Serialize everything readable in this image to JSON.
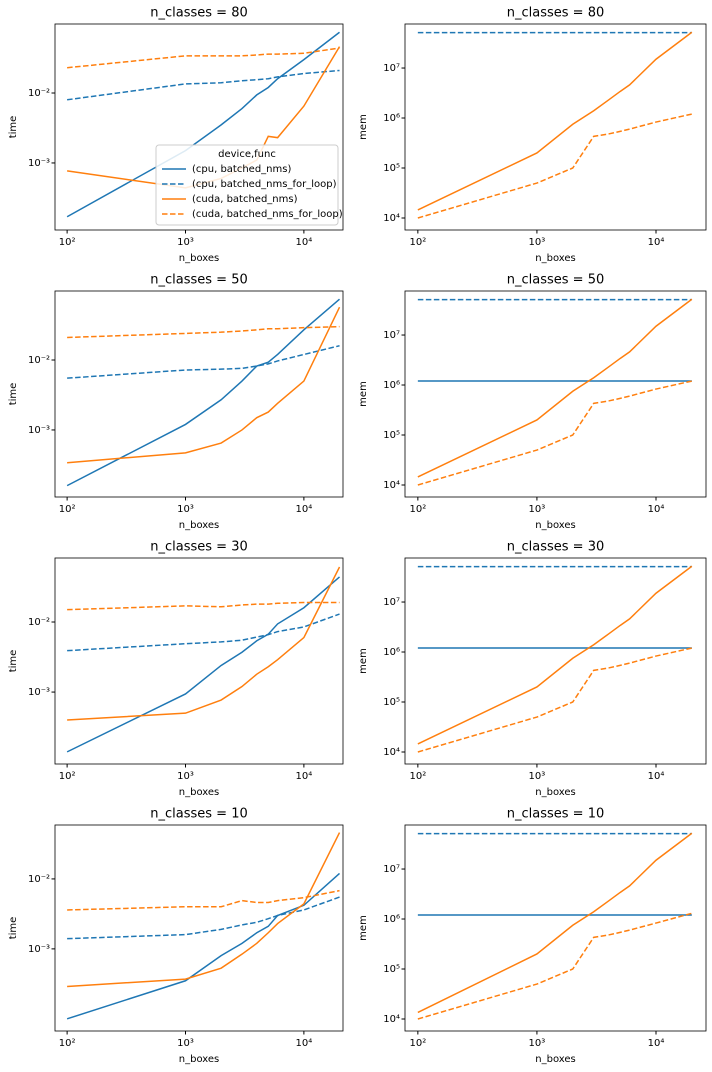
{
  "chart_data": [
    {
      "type": "line",
      "title": "n_classes = 80",
      "xlabel": "n_boxes",
      "ylabel": "time",
      "xscale": "log",
      "yscale": "log",
      "xlim": [
        79,
        21400
      ],
      "ylim": [
        0.00011,
        0.097
      ],
      "xticks": [
        {
          "value": 100,
          "label": "10²"
        },
        {
          "value": 1000,
          "label": "10³"
        },
        {
          "value": 10000,
          "label": "10⁴"
        }
      ],
      "yticks": [
        {
          "value": 0.001,
          "label": "10⁻³"
        },
        {
          "value": 0.01,
          "label": "10⁻²"
        }
      ],
      "legend": {
        "title": "device,func",
        "loc": "lower right"
      },
      "x": [
        100,
        1000,
        2000,
        3000,
        4000,
        5000,
        6000,
        10000,
        20000
      ],
      "series": [
        {
          "name": "(cpu, batched_nms)",
          "color": "#1f77b4",
          "linestyle": "solid",
          "values": [
            0.00017,
            0.0015,
            0.0035,
            0.006,
            0.0094,
            0.012,
            0.016,
            0.03,
            0.074
          ]
        },
        {
          "name": "(cpu, batched_nms_for_loop)",
          "color": "#1f77b4",
          "linestyle": "dashed",
          "values": [
            0.008,
            0.0135,
            0.014,
            0.015,
            0.0155,
            0.016,
            0.017,
            0.019,
            0.021
          ]
        },
        {
          "name": "(cuda, batched_nms)",
          "color": "#ff7f0e",
          "linestyle": "solid",
          "values": [
            0.00077,
            0.00044,
            0.0006,
            0.00085,
            0.0011,
            0.0024,
            0.0023,
            0.0065,
            0.046
          ]
        },
        {
          "name": "(cuda, batched_nms_for_loop)",
          "color": "#ff7f0e",
          "linestyle": "dashed",
          "values": [
            0.023,
            0.034,
            0.034,
            0.034,
            0.035,
            0.036,
            0.036,
            0.037,
            0.044
          ]
        }
      ]
    },
    {
      "type": "line",
      "title": "n_classes = 80",
      "xlabel": "n_boxes",
      "ylabel": "mem",
      "xscale": "log",
      "yscale": "log",
      "xlim": [
        78,
        26300
      ],
      "ylim": [
        5750,
        76000000
      ],
      "xticks": [
        {
          "value": 100,
          "label": "10²"
        },
        {
          "value": 1000,
          "label": "10³"
        },
        {
          "value": 10000,
          "label": "10⁴"
        }
      ],
      "yticks": [
        {
          "value": 10000,
          "label": "10⁴"
        },
        {
          "value": 100000,
          "label": "10⁵"
        },
        {
          "value": 1000000,
          "label": "10⁶"
        },
        {
          "value": 10000000,
          "label": "10⁷"
        }
      ],
      "x": [
        100,
        1000,
        2000,
        3000,
        4000,
        5000,
        6000,
        10000,
        20000
      ],
      "series": [
        {
          "color": "#1f77b4",
          "linestyle": "dashed",
          "values": [
            51000000,
            51000000,
            51000000,
            51000000,
            51000000,
            51000000,
            51000000,
            51000000,
            51000000
          ]
        },
        {
          "color": "#ff7f0e",
          "linestyle": "solid",
          "values": [
            14500,
            200000,
            750000,
            1400000,
            2300000,
            3400000,
            4600000,
            15000000,
            52000000
          ]
        },
        {
          "color": "#ff7f0e",
          "linestyle": "dashed",
          "values": [
            10000,
            50000,
            100000,
            430000,
            480000,
            540000,
            600000,
            830000,
            1200000
          ]
        }
      ]
    },
    {
      "type": "line",
      "title": "n_classes = 50",
      "xlabel": "n_boxes",
      "ylabel": "time",
      "xscale": "log",
      "yscale": "log",
      "xlim": [
        79,
        21400
      ],
      "ylim": [
        0.00011,
        0.097
      ],
      "xticks": [
        {
          "value": 100,
          "label": "10²"
        },
        {
          "value": 1000,
          "label": "10³"
        },
        {
          "value": 10000,
          "label": "10⁴"
        }
      ],
      "yticks": [
        {
          "value": 0.001,
          "label": "10⁻³"
        },
        {
          "value": 0.01,
          "label": "10⁻²"
        }
      ],
      "x": [
        100,
        1000,
        2000,
        3000,
        4000,
        5000,
        6000,
        10000,
        20000
      ],
      "series": [
        {
          "color": "#1f77b4",
          "linestyle": "solid",
          "values": [
            0.00016,
            0.0012,
            0.0027,
            0.005,
            0.0082,
            0.0093,
            0.012,
            0.027,
            0.074
          ]
        },
        {
          "color": "#1f77b4",
          "linestyle": "dashed",
          "values": [
            0.0055,
            0.0072,
            0.0074,
            0.0076,
            0.0082,
            0.0088,
            0.0097,
            0.012,
            0.016
          ]
        },
        {
          "color": "#ff7f0e",
          "linestyle": "solid",
          "values": [
            0.00034,
            0.00047,
            0.00065,
            0.001,
            0.0015,
            0.0018,
            0.0024,
            0.005,
            0.057
          ]
        },
        {
          "color": "#ff7f0e",
          "linestyle": "dashed",
          "values": [
            0.021,
            0.024,
            0.025,
            0.026,
            0.027,
            0.028,
            0.028,
            0.029,
            0.03
          ]
        }
      ]
    },
    {
      "type": "line",
      "title": "n_classes = 50",
      "xlabel": "n_boxes",
      "ylabel": "mem",
      "xscale": "log",
      "yscale": "log",
      "xlim": [
        78,
        26300
      ],
      "ylim": [
        5750,
        76000000
      ],
      "xticks": [
        {
          "value": 100,
          "label": "10²"
        },
        {
          "value": 1000,
          "label": "10³"
        },
        {
          "value": 10000,
          "label": "10⁴"
        }
      ],
      "yticks": [
        {
          "value": 10000,
          "label": "10⁴"
        },
        {
          "value": 100000,
          "label": "10⁵"
        },
        {
          "value": 1000000,
          "label": "10⁶"
        },
        {
          "value": 10000000,
          "label": "10⁷"
        }
      ],
      "x": [
        100,
        1000,
        2000,
        3000,
        4000,
        5000,
        6000,
        10000,
        20000
      ],
      "series": [
        {
          "color": "#1f77b4",
          "linestyle": "solid",
          "values": [
            1200000,
            1200000,
            1200000,
            1200000,
            1200000,
            1200000,
            1200000,
            1200000,
            1200000
          ]
        },
        {
          "color": "#1f77b4",
          "linestyle": "dashed",
          "values": [
            51000000,
            51000000,
            51000000,
            51000000,
            51000000,
            51000000,
            51000000,
            51000000,
            51000000
          ]
        },
        {
          "color": "#ff7f0e",
          "linestyle": "solid",
          "values": [
            14500,
            200000,
            750000,
            1400000,
            2300000,
            3400000,
            4600000,
            15000000,
            52000000
          ]
        },
        {
          "color": "#ff7f0e",
          "linestyle": "dashed",
          "values": [
            10000,
            50000,
            100000,
            430000,
            480000,
            540000,
            600000,
            830000,
            1200000
          ]
        }
      ]
    },
    {
      "type": "line",
      "title": "n_classes = 30",
      "xlabel": "n_boxes",
      "ylabel": "time",
      "xscale": "log",
      "yscale": "log",
      "xlim": [
        79,
        21400
      ],
      "ylim": [
        9.4e-05,
        0.082
      ],
      "xticks": [
        {
          "value": 100,
          "label": "10²"
        },
        {
          "value": 1000,
          "label": "10³"
        },
        {
          "value": 10000,
          "label": "10⁴"
        }
      ],
      "yticks": [
        {
          "value": 0.001,
          "label": "10⁻³"
        },
        {
          "value": 0.01,
          "label": "10⁻²"
        }
      ],
      "x": [
        100,
        1000,
        2000,
        3000,
        4000,
        5000,
        6000,
        10000,
        20000
      ],
      "series": [
        {
          "color": "#1f77b4",
          "linestyle": "solid",
          "values": [
            0.00014,
            0.00094,
            0.0024,
            0.0037,
            0.0054,
            0.0067,
            0.0094,
            0.016,
            0.044
          ]
        },
        {
          "color": "#1f77b4",
          "linestyle": "dashed",
          "values": [
            0.0039,
            0.0049,
            0.0052,
            0.0055,
            0.0061,
            0.0066,
            0.0073,
            0.0085,
            0.013
          ]
        },
        {
          "color": "#ff7f0e",
          "linestyle": "solid",
          "values": [
            0.0004,
            0.0005,
            0.00077,
            0.0012,
            0.0018,
            0.0023,
            0.0029,
            0.006,
            0.061
          ]
        },
        {
          "color": "#ff7f0e",
          "linestyle": "dashed",
          "values": [
            0.015,
            0.017,
            0.0165,
            0.0175,
            0.018,
            0.018,
            0.0185,
            0.019,
            0.019
          ]
        }
      ]
    },
    {
      "type": "line",
      "title": "n_classes = 30",
      "xlabel": "n_boxes",
      "ylabel": "mem",
      "xscale": "log",
      "yscale": "log",
      "xlim": [
        78,
        26300
      ],
      "ylim": [
        5750,
        76000000
      ],
      "xticks": [
        {
          "value": 100,
          "label": "10²"
        },
        {
          "value": 1000,
          "label": "10³"
        },
        {
          "value": 10000,
          "label": "10⁴"
        }
      ],
      "yticks": [
        {
          "value": 10000,
          "label": "10⁴"
        },
        {
          "value": 100000,
          "label": "10⁵"
        },
        {
          "value": 1000000,
          "label": "10⁶"
        },
        {
          "value": 10000000,
          "label": "10⁷"
        }
      ],
      "x": [
        100,
        1000,
        2000,
        3000,
        4000,
        5000,
        6000,
        10000,
        20000
      ],
      "series": [
        {
          "color": "#1f77b4",
          "linestyle": "solid",
          "values": [
            1200000,
            1200000,
            1200000,
            1200000,
            1200000,
            1200000,
            1200000,
            1200000,
            1200000
          ]
        },
        {
          "color": "#1f77b4",
          "linestyle": "dashed",
          "values": [
            51000000,
            51000000,
            51000000,
            51000000,
            51000000,
            51000000,
            51000000,
            51000000,
            51000000
          ]
        },
        {
          "color": "#ff7f0e",
          "linestyle": "solid",
          "values": [
            14500,
            200000,
            750000,
            1400000,
            2300000,
            3400000,
            4600000,
            15000000,
            52000000
          ]
        },
        {
          "color": "#ff7f0e",
          "linestyle": "dashed",
          "values": [
            10000,
            50000,
            100000,
            430000,
            480000,
            540000,
            600000,
            830000,
            1200000
          ]
        }
      ]
    },
    {
      "type": "line",
      "title": "n_classes = 10",
      "xlabel": "n_boxes",
      "ylabel": "time",
      "xscale": "log",
      "yscale": "log",
      "xlim": [
        79,
        21400
      ],
      "ylim": [
        6.7e-05,
        0.059
      ],
      "xticks": [
        {
          "value": 100,
          "label": "10²"
        },
        {
          "value": 1000,
          "label": "10³"
        },
        {
          "value": 10000,
          "label": "10⁴"
        }
      ],
      "yticks": [
        {
          "value": 0.001,
          "label": "10⁻³"
        },
        {
          "value": 0.01,
          "label": "10⁻²"
        }
      ],
      "x": [
        100,
        1000,
        2000,
        3000,
        4000,
        5000,
        6000,
        10000,
        20000
      ],
      "series": [
        {
          "color": "#1f77b4",
          "linestyle": "solid",
          "values": [
            0.0001,
            0.00035,
            0.0008,
            0.0012,
            0.0017,
            0.0021,
            0.003,
            0.0042,
            0.012
          ]
        },
        {
          "color": "#1f77b4",
          "linestyle": "dashed",
          "values": [
            0.0014,
            0.0016,
            0.0019,
            0.0022,
            0.0024,
            0.0027,
            0.003,
            0.0036,
            0.0055
          ]
        },
        {
          "color": "#ff7f0e",
          "linestyle": "solid",
          "values": [
            0.00029,
            0.00037,
            0.00053,
            0.00084,
            0.0012,
            0.0017,
            0.0023,
            0.0044,
            0.046
          ]
        },
        {
          "color": "#ff7f0e",
          "linestyle": "dashed",
          "values": [
            0.0036,
            0.004,
            0.004,
            0.0049,
            0.0046,
            0.0046,
            0.0049,
            0.0054,
            0.0068
          ]
        }
      ]
    },
    {
      "type": "line",
      "title": "n_classes = 10",
      "xlabel": "n_boxes",
      "ylabel": "mem",
      "xscale": "log",
      "yscale": "log",
      "xlim": [
        78,
        26300
      ],
      "ylim": [
        5750,
        76000000
      ],
      "xticks": [
        {
          "value": 100,
          "label": "10²"
        },
        {
          "value": 1000,
          "label": "10³"
        },
        {
          "value": 10000,
          "label": "10⁴"
        }
      ],
      "yticks": [
        {
          "value": 10000,
          "label": "10⁴"
        },
        {
          "value": 100000,
          "label": "10⁵"
        },
        {
          "value": 1000000,
          "label": "10⁶"
        },
        {
          "value": 10000000,
          "label": "10⁷"
        }
      ],
      "x": [
        100,
        1000,
        2000,
        3000,
        4000,
        5000,
        6000,
        10000,
        20000
      ],
      "series": [
        {
          "color": "#1f77b4",
          "linestyle": "solid",
          "values": [
            1200000,
            1200000,
            1200000,
            1200000,
            1200000,
            1200000,
            1200000,
            1200000,
            1200000
          ]
        },
        {
          "color": "#1f77b4",
          "linestyle": "dashed",
          "values": [
            51000000,
            51000000,
            51000000,
            51000000,
            51000000,
            51000000,
            51000000,
            51000000,
            51000000
          ]
        },
        {
          "color": "#ff7f0e",
          "linestyle": "solid",
          "values": [
            13500,
            200000,
            750000,
            1400000,
            2300000,
            3400000,
            4600000,
            15000000,
            52000000
          ]
        },
        {
          "color": "#ff7f0e",
          "linestyle": "dashed",
          "values": [
            10000,
            50000,
            100000,
            430000,
            480000,
            540000,
            600000,
            830000,
            1300000
          ]
        }
      ]
    }
  ]
}
